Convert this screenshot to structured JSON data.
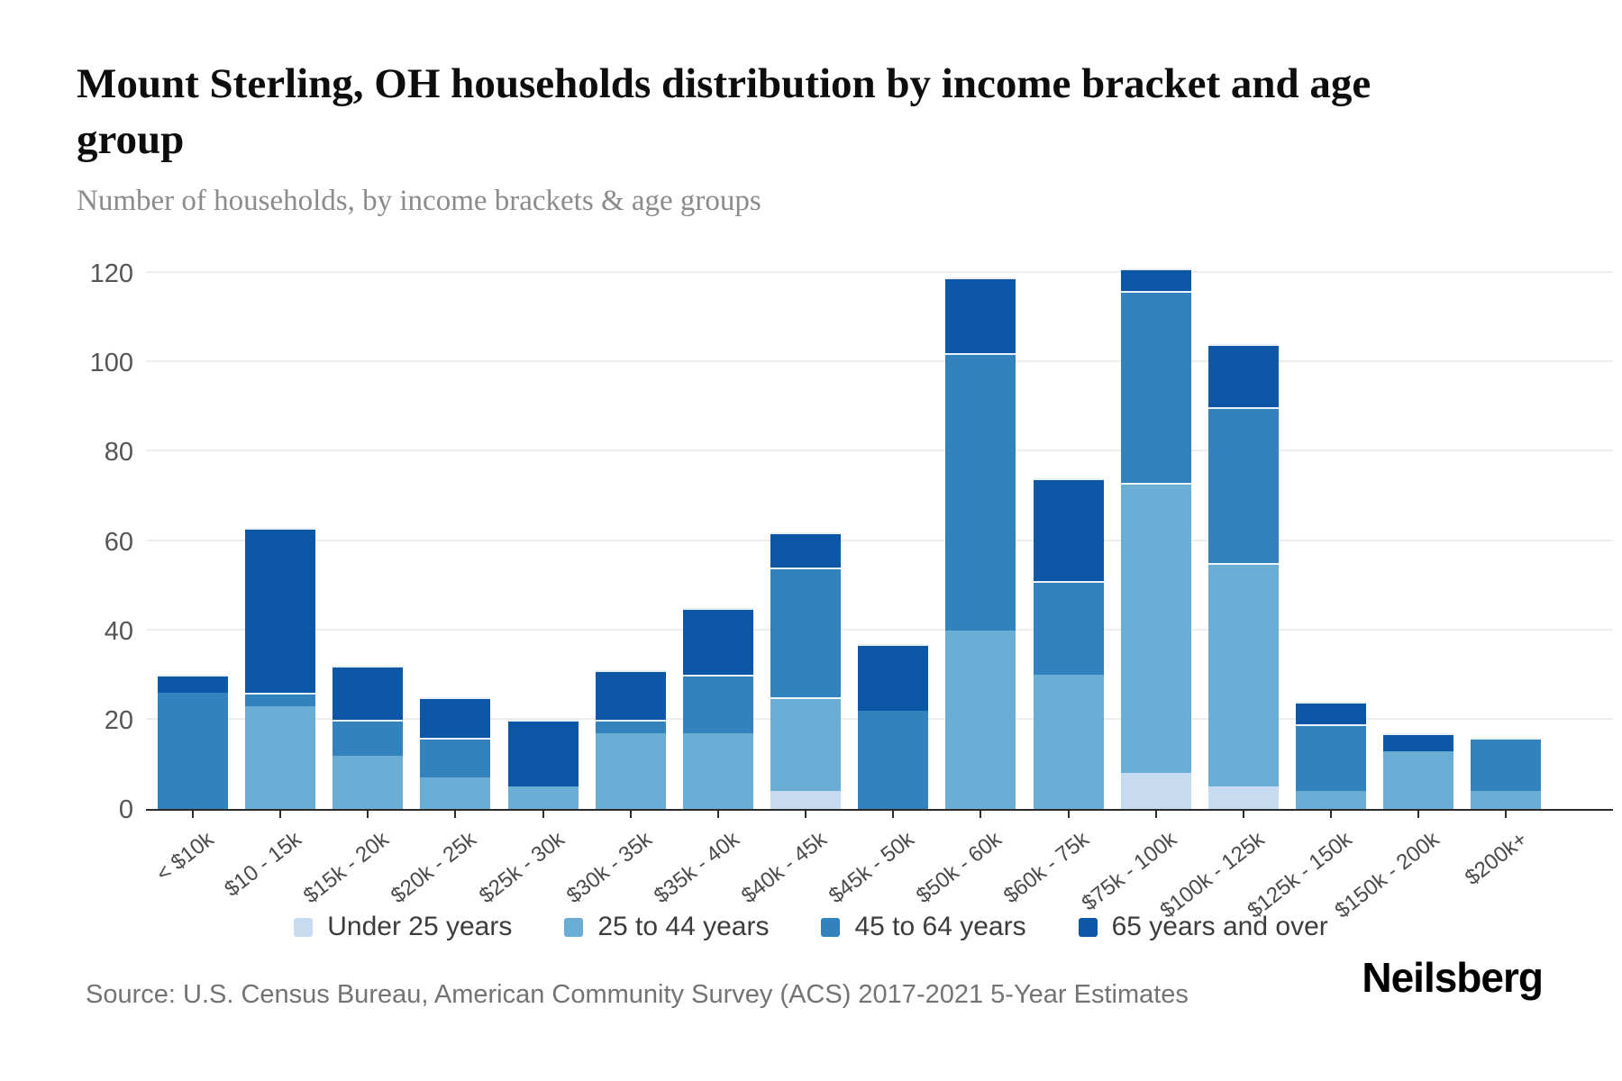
{
  "header": {
    "title": "Mount Sterling, OH households distribution by income bracket and age group",
    "subtitle": "Number of households, by income brackets & age groups"
  },
  "footer": {
    "source": "Source: U.S. Census Bureau, American Community Survey (ACS) 2017-2021 5-Year Estimates",
    "logo": "Neilsberg"
  },
  "chart_data": {
    "type": "bar",
    "stacked": true,
    "title": "Mount Sterling, OH households distribution by income bracket and age group",
    "xlabel": "",
    "ylabel": "Number of households",
    "ylim": [
      0,
      120
    ],
    "yticks": [
      0,
      20,
      40,
      60,
      80,
      100,
      120
    ],
    "grid": true,
    "legend_position": "bottom",
    "categories": [
      "< $10k",
      "$10 - 15k",
      "$15k - 20k",
      "$20k - 25k",
      "$25k - 30k",
      "$30k - 35k",
      "$35k - 40k",
      "$40k - 45k",
      "$45k - 50k",
      "$50k - 60k",
      "$60k - 75k",
      "$75k - 100k",
      "$100k - 125k",
      "$125k - 150k",
      "$150k - 200k",
      "$200k+"
    ],
    "series": [
      {
        "name": "Under 25 years",
        "color": "#c6dbef",
        "values": [
          0,
          0,
          0,
          0,
          0,
          0,
          0,
          4,
          0,
          0,
          0,
          8,
          5,
          0,
          0,
          0
        ]
      },
      {
        "name": "25 to 44 years",
        "color": "#6aaed6",
        "values": [
          0,
          23,
          12,
          7,
          5,
          17,
          17,
          21,
          0,
          40,
          30,
          65,
          50,
          4,
          13,
          4
        ]
      },
      {
        "name": "45 to 64 years",
        "color": "#3182bd",
        "values": [
          26,
          3,
          8,
          9,
          0,
          3,
          13,
          29,
          22,
          62,
          21,
          43,
          35,
          15,
          0,
          12
        ]
      },
      {
        "name": "65 years and over",
        "color": "#0b56a5",
        "values": [
          4,
          37,
          12,
          9,
          15,
          11,
          15,
          8,
          15,
          17,
          23,
          5,
          14,
          5,
          4,
          0
        ]
      }
    ],
    "totals": [
      30,
      63,
      32,
      25,
      20,
      31,
      45,
      62,
      37,
      119,
      74,
      121,
      104,
      24,
      17,
      16
    ]
  }
}
